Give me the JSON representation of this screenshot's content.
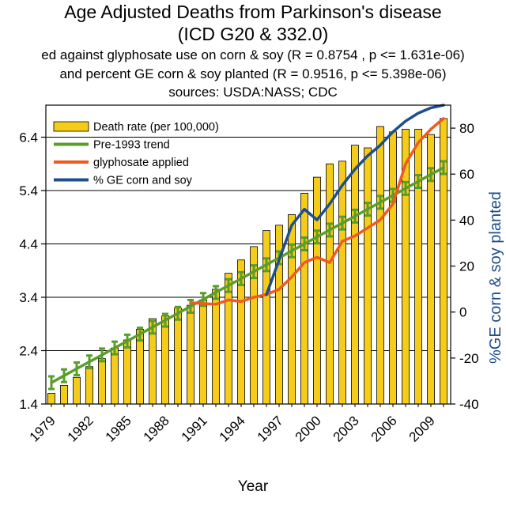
{
  "chart_data": {
    "type": "bar",
    "title": "Age Adjusted Deaths from Parkinson's disease",
    "title_line2": "(ICD G20 & 332.0)",
    "subtitle_lines": [
      "ed against glyphosate use on corn & soy (R = 0.8754 , p <= 1.631e-06)",
      "and percent GE corn & soy planted (R = 0.9516, p <= 5.398e-06)",
      "sources: USDA:NASS; CDC"
    ],
    "xlabel": "Year",
    "ylabel_right": "%GE corn & soy planted",
    "x": [
      1979,
      1980,
      1981,
      1982,
      1983,
      1984,
      1985,
      1986,
      1987,
      1988,
      1989,
      1990,
      1991,
      1992,
      1993,
      1994,
      1995,
      1996,
      1997,
      1998,
      1999,
      2000,
      2001,
      2002,
      2003,
      2004,
      2005,
      2006,
      2007,
      2008,
      2009,
      2010
    ],
    "x_tick_labels": [
      "1979",
      "1982",
      "1985",
      "1988",
      "1991",
      "1994",
      "1997",
      "2000",
      "2003",
      "2006",
      "2009"
    ],
    "x_tick_values": [
      1979,
      1982,
      1985,
      1988,
      1991,
      1994,
      1997,
      2000,
      2003,
      2006,
      2009
    ],
    "y_left": {
      "lim": [
        1.4,
        7.0
      ],
      "ticks": [
        1.4,
        2.4,
        3.4,
        4.4,
        5.4,
        6.4
      ],
      "tick_labels": [
        "1.4",
        "2.4",
        "3.4",
        "4.4",
        "5.4",
        "6.4"
      ]
    },
    "y_right": {
      "lim": [
        -40,
        90
      ],
      "ticks": [
        -40,
        -20,
        0,
        20,
        40,
        60,
        80
      ],
      "tick_labels": [
        "-40",
        "-20",
        "0",
        "20",
        "40",
        "60",
        "80"
      ]
    },
    "grid": "horizontal",
    "legend_placement": "top-left",
    "series": [
      {
        "name": "Death rate (per 100,000)",
        "kind": "bar",
        "axis": "left",
        "color": "#f5cc1a",
        "values": [
          1.6,
          1.75,
          1.9,
          2.1,
          2.25,
          2.45,
          2.6,
          2.8,
          3.0,
          3.05,
          3.2,
          3.25,
          3.35,
          3.55,
          3.85,
          4.1,
          4.35,
          4.65,
          4.75,
          4.95,
          5.35,
          5.65,
          5.9,
          5.95,
          6.25,
          6.2,
          6.6,
          6.5,
          6.55,
          6.55,
          6.45,
          6.75
        ]
      },
      {
        "name": "Pre-1993 trend",
        "kind": "line-with-error-bars",
        "axis": "left",
        "color": "#5a9e2a",
        "values": [
          1.8,
          1.93,
          2.06,
          2.19,
          2.32,
          2.45,
          2.58,
          2.71,
          2.84,
          2.97,
          3.1,
          3.23,
          3.36,
          3.49,
          3.62,
          3.75,
          3.88,
          4.01,
          4.14,
          4.27,
          4.4,
          4.53,
          4.66,
          4.79,
          4.92,
          5.05,
          5.18,
          5.31,
          5.44,
          5.57,
          5.7,
          5.83
        ]
      },
      {
        "name": "glyphosate applied",
        "kind": "line",
        "axis": "left",
        "color": "#f05a1e",
        "x": [
          1990,
          1991,
          1992,
          1993,
          1994,
          1995,
          1996,
          1997,
          1998,
          1999,
          2000,
          2001,
          2002,
          2003,
          2004,
          2005,
          2006,
          2007,
          2008,
          2009,
          2010
        ],
        "values": [
          3.3,
          3.28,
          3.27,
          3.35,
          3.32,
          3.4,
          3.45,
          3.55,
          3.78,
          4.05,
          4.15,
          4.05,
          4.45,
          4.55,
          4.7,
          4.85,
          5.15,
          5.9,
          6.3,
          6.55,
          6.75
        ]
      },
      {
        "name": "% GE corn and soy",
        "kind": "line",
        "axis": "left",
        "color": "#1f4e8c",
        "x": [
          1996,
          1997,
          1998,
          1999,
          2000,
          2001,
          2002,
          2003,
          2004,
          2005,
          2006,
          2007,
          2008,
          2009,
          2010
        ],
        "values": [
          3.45,
          4.1,
          4.75,
          5.05,
          4.85,
          5.15,
          5.5,
          5.8,
          6.05,
          6.25,
          6.5,
          6.7,
          6.85,
          6.95,
          7.0
        ]
      }
    ]
  }
}
